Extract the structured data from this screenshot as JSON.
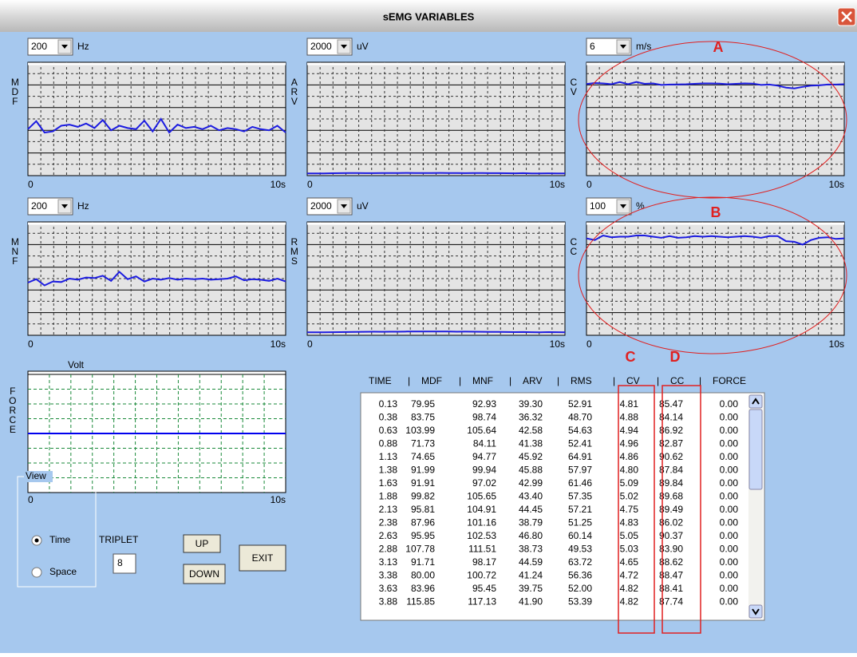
{
  "title": "sEMG VARIABLES",
  "charts": [
    {
      "label": "MDF",
      "scale": 200,
      "unit": "Hz",
      "ylim": [
        0,
        200
      ],
      "x_start": "0",
      "x_end": "10s",
      "color": "#1c1ce0",
      "values": [
        82,
        96,
        76,
        78,
        88,
        90,
        86,
        92,
        84,
        98,
        80,
        88,
        84,
        82,
        97,
        78,
        100,
        76,
        90,
        84,
        86,
        82,
        88,
        80,
        84,
        82,
        78,
        86,
        82,
        80,
        88,
        76
      ]
    },
    {
      "label": "ARV",
      "scale": 2000,
      "unit": "uV",
      "ylim": [
        0,
        2000
      ],
      "x_start": "0",
      "x_end": "10s",
      "color": "#1c1ce0",
      "values": [
        39,
        38,
        40,
        42,
        44,
        45,
        46,
        44,
        43,
        45,
        46,
        47,
        48,
        46,
        45,
        47,
        48,
        46,
        45,
        44,
        46,
        45,
        43,
        44,
        42,
        41,
        43,
        40,
        39,
        41,
        40,
        40
      ]
    },
    {
      "label": "CV",
      "scale": 6,
      "unit": "m/s",
      "ylim": [
        0,
        6
      ],
      "x_start": "0",
      "x_end": "10s",
      "color": "#1c1ce0",
      "values": [
        4.85,
        4.9,
        4.88,
        4.84,
        4.95,
        4.84,
        4.96,
        4.86,
        4.88,
        4.8,
        4.82,
        4.83,
        4.84,
        4.86,
        4.88,
        4.88,
        4.87,
        4.84,
        4.86,
        4.88,
        4.87,
        4.8,
        4.82,
        4.76,
        4.66,
        4.62,
        4.7,
        4.76,
        4.78,
        4.82,
        4.82,
        4.84
      ]
    },
    {
      "label": "MNF",
      "scale": 200,
      "unit": "Hz",
      "ylim": [
        0,
        200
      ],
      "x_start": "0",
      "x_end": "10s",
      "color": "#1c1ce0",
      "values": [
        93,
        99,
        88,
        95,
        94,
        100,
        98,
        102,
        101,
        105,
        96,
        112,
        99,
        104,
        95,
        100,
        98,
        101,
        98,
        100,
        99,
        100,
        98,
        99,
        100,
        104,
        97,
        99,
        98,
        96,
        100,
        95
      ]
    },
    {
      "label": "RMS",
      "scale": 2000,
      "unit": "uV",
      "ylim": [
        0,
        2000
      ],
      "x_start": "0",
      "x_end": "10s",
      "color": "#1c1ce0",
      "values": [
        53,
        52,
        54,
        55,
        56,
        58,
        60,
        62,
        64,
        62,
        63,
        64,
        66,
        68,
        67,
        66,
        68,
        66,
        64,
        65,
        63,
        62,
        60,
        61,
        58,
        56,
        58,
        55,
        54,
        56,
        55,
        54
      ]
    },
    {
      "label": "CC",
      "scale": 100,
      "unit": "%",
      "ylim": [
        0,
        100
      ],
      "x_start": "0",
      "x_end": "10s",
      "color": "#1c1ce0",
      "values": [
        85.5,
        84,
        88,
        86.5,
        87,
        87,
        88,
        88,
        87,
        86,
        87.5,
        86,
        86.5,
        87.5,
        87,
        87.5,
        87,
        86.5,
        87,
        87.5,
        87,
        86,
        87.5,
        87.5,
        83,
        82.5,
        80,
        84,
        86,
        86.5,
        85,
        85.5
      ]
    }
  ],
  "force": {
    "label": "FORCE",
    "unit": "Volt",
    "ylim": [
      -1,
      1
    ],
    "x_start": "0",
    "x_end": "10s",
    "color": "#0000ee",
    "values": [
      0,
      0,
      0,
      0,
      0,
      0,
      0,
      0,
      0,
      0,
      0,
      0,
      0,
      0,
      0,
      0
    ]
  },
  "view": {
    "legend": "View",
    "options": [
      "Time",
      "Space"
    ],
    "selected": 0
  },
  "triplet": {
    "label": "TRIPLET",
    "value": "8"
  },
  "buttons": [
    "UP",
    "DOWN",
    "EXIT"
  ],
  "table": {
    "columns": [
      "TIME",
      "MDF",
      "MNF",
      "ARV",
      "RMS",
      "CV",
      "CC",
      "FORCE"
    ],
    "rows": [
      [
        "0.13",
        "79.95",
        "92.93",
        "39.30",
        "52.91",
        "4.81",
        "85.47",
        "0.00"
      ],
      [
        "0.38",
        "83.75",
        "98.74",
        "36.32",
        "48.70",
        "4.88",
        "84.14",
        "0.00"
      ],
      [
        "0.63",
        "103.99",
        "105.64",
        "42.58",
        "54.63",
        "4.94",
        "86.92",
        "0.00"
      ],
      [
        "0.88",
        "71.73",
        "84.11",
        "41.38",
        "52.41",
        "4.96",
        "82.87",
        "0.00"
      ],
      [
        "1.13",
        "74.65",
        "94.77",
        "45.92",
        "64.91",
        "4.86",
        "90.62",
        "0.00"
      ],
      [
        "1.38",
        "91.99",
        "99.94",
        "45.88",
        "57.97",
        "4.80",
        "87.84",
        "0.00"
      ],
      [
        "1.63",
        "91.91",
        "97.02",
        "42.99",
        "61.46",
        "5.09",
        "89.84",
        "0.00"
      ],
      [
        "1.88",
        "99.82",
        "105.65",
        "43.40",
        "57.35",
        "5.02",
        "89.68",
        "0.00"
      ],
      [
        "2.13",
        "95.81",
        "104.91",
        "44.45",
        "57.21",
        "4.75",
        "89.49",
        "0.00"
      ],
      [
        "2.38",
        "87.96",
        "101.16",
        "38.79",
        "51.25",
        "4.83",
        "86.02",
        "0.00"
      ],
      [
        "2.63",
        "95.95",
        "102.53",
        "46.80",
        "60.14",
        "5.05",
        "90.37",
        "0.00"
      ],
      [
        "2.88",
        "107.78",
        "111.51",
        "38.73",
        "49.53",
        "5.03",
        "83.90",
        "0.00"
      ],
      [
        "3.13",
        "91.71",
        "98.17",
        "44.59",
        "63.72",
        "4.65",
        "88.62",
        "0.00"
      ],
      [
        "3.38",
        "80.00",
        "100.72",
        "41.24",
        "56.36",
        "4.72",
        "88.47",
        "0.00"
      ],
      [
        "3.63",
        "83.96",
        "95.45",
        "39.75",
        "52.00",
        "4.82",
        "88.41",
        "0.00"
      ],
      [
        "3.88",
        "115.85",
        "117.13",
        "41.90",
        "53.39",
        "4.82",
        "87.74",
        "0.00"
      ]
    ]
  },
  "annotations": [
    "A",
    "B",
    "C",
    "D"
  ]
}
